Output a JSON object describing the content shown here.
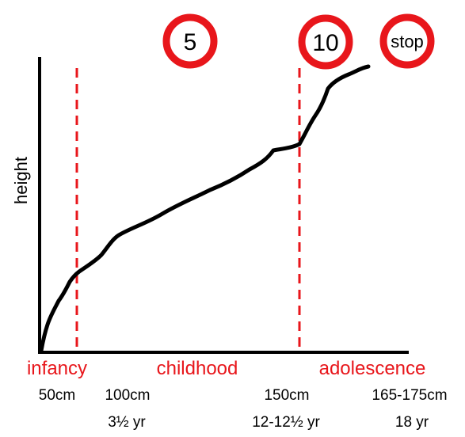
{
  "axis": {
    "y_label": "height"
  },
  "signs": [
    {
      "id": "sign-5",
      "text": "5"
    },
    {
      "id": "sign-10",
      "text": "10"
    },
    {
      "id": "sign-stop",
      "text": "stop"
    }
  ],
  "phases": [
    {
      "id": "infancy",
      "text": "infancy"
    },
    {
      "id": "childhood",
      "text": "childhood"
    },
    {
      "id": "adolescence",
      "text": "adolescence"
    }
  ],
  "heights": [
    "50cm",
    "100cm",
    "150cm",
    "165-175cm"
  ],
  "ages": [
    "3½ yr",
    "12-12½ yr",
    "18 yr"
  ],
  "colors": {
    "accent": "#e8161b",
    "ink": "#000000"
  }
}
